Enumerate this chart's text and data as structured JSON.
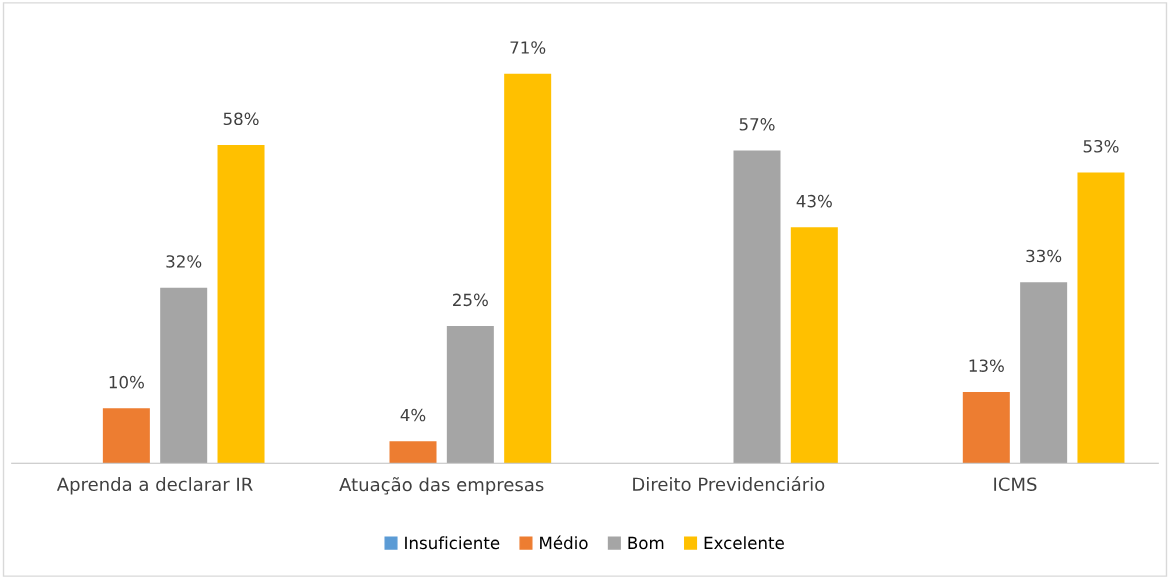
{
  "chart_data": {
    "type": "bar",
    "categories": [
      "Aprenda a declarar IR",
      "Atuação das empresas",
      "Direito Previdenciário",
      "ICMS"
    ],
    "series": [
      {
        "name": "Insuficiente",
        "color": "#5b9bd5",
        "values": [
          null,
          null,
          null,
          null
        ],
        "value_labels": [
          null,
          null,
          null,
          null
        ]
      },
      {
        "name": "Médio",
        "color": "#ed7d31",
        "values": [
          10,
          4,
          null,
          13
        ],
        "value_labels": [
          "10%",
          "4%",
          null,
          "13%"
        ]
      },
      {
        "name": "Bom",
        "color": "#a5a5a5",
        "values": [
          32,
          25,
          57,
          33
        ],
        "value_labels": [
          "32%",
          "25%",
          "57%",
          "33%"
        ]
      },
      {
        "name": "Excelente",
        "color": "#ffc000",
        "values": [
          58,
          71,
          43,
          53
        ],
        "value_labels": [
          "58%",
          "71%",
          "43%",
          "53%"
        ]
      }
    ],
    "legend": "bottom",
    "grid": false,
    "tick_labels": "x"
  }
}
